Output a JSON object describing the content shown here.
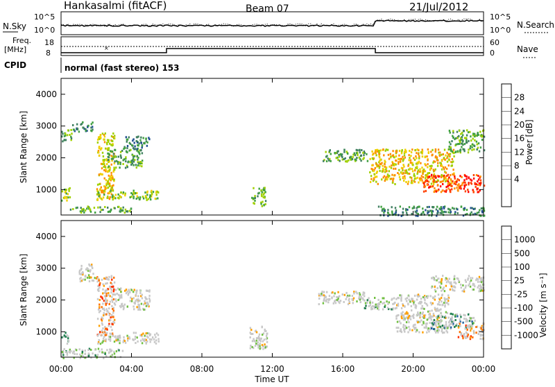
{
  "header": {
    "station": "Hankasalmi (fitACF)",
    "beam": "Beam 07",
    "date": "21/Jul/2012"
  },
  "noise_panel": {
    "left_label": "N.Sky",
    "right_label": "N.Search",
    "left_ticks": [
      "10^5",
      "10^0"
    ],
    "right_ticks": [
      "10^5",
      "10^0"
    ]
  },
  "freq_panel": {
    "left_label_line1": "Freq.",
    "left_label_line2": "[MHz]",
    "left_ticks": [
      "18",
      "8"
    ],
    "right_label": "Nave",
    "right_ticks": [
      "60",
      "0"
    ]
  },
  "cpid": {
    "label": "CPID",
    "mode_text": "normal (fast stereo) 153"
  },
  "colors": {
    "frame": "#000000",
    "background": "#ffffff",
    "ground_scatter": "#c8c8c8"
  },
  "chart_data": [
    {
      "type": "heatmap",
      "name": "power",
      "ylabel": "Slant Range [km]",
      "yticks": [
        "1000",
        "2000",
        "3000",
        "4000"
      ],
      "y_values": [
        1000,
        2000,
        3000,
        4000
      ],
      "ylim": [
        200,
        4500
      ],
      "colorbar_label": "Power [dB]",
      "colorbar_ticks": [
        "28",
        "24",
        "20",
        "16",
        "12",
        "8",
        "4"
      ],
      "colorbar_colors": [
        "#ff0000",
        "#ff4000",
        "#ff8c00",
        "#f0d000",
        "#a0d000",
        "#40a040",
        "#408060",
        "#205090",
        "#0000ff"
      ],
      "scatter_regions": [
        {
          "t0": 0.0,
          "t1": 0.5,
          "r0": 650,
          "r1": 1100,
          "level": 4
        },
        {
          "t0": 0.0,
          "t1": 0.6,
          "r0": 2550,
          "r1": 2950,
          "level": 3
        },
        {
          "t0": 0.6,
          "t1": 1.8,
          "r0": 2850,
          "r1": 3150,
          "level": 2
        },
        {
          "t0": 2.0,
          "t1": 3.0,
          "r0": 700,
          "r1": 2800,
          "level": 5
        },
        {
          "t0": 2.6,
          "t1": 4.6,
          "r0": 1700,
          "r1": 2300,
          "level": 3
        },
        {
          "t0": 3.5,
          "t1": 5.0,
          "r0": 2300,
          "r1": 2700,
          "level": 2
        },
        {
          "t0": 2.0,
          "t1": 5.5,
          "r0": 700,
          "r1": 1000,
          "level": 4
        },
        {
          "t0": 0.5,
          "t1": 4.0,
          "r0": 300,
          "r1": 500,
          "level": 3
        },
        {
          "t0": 10.8,
          "t1": 11.6,
          "r0": 500,
          "r1": 1100,
          "level": 3
        },
        {
          "t0": 14.8,
          "t1": 17.4,
          "r0": 1900,
          "r1": 2300,
          "level": 3
        },
        {
          "t0": 17.5,
          "t1": 22.3,
          "r0": 1200,
          "r1": 2300,
          "level": 5
        },
        {
          "t0": 20.5,
          "t1": 24.0,
          "r0": 950,
          "r1": 1500,
          "level": 7
        },
        {
          "t0": 22.0,
          "t1": 24.0,
          "r0": 2200,
          "r1": 2900,
          "level": 3
        },
        {
          "t0": 18.0,
          "t1": 24.0,
          "r0": 200,
          "r1": 500,
          "level": 2
        }
      ]
    },
    {
      "type": "heatmap",
      "name": "velocity",
      "ylabel": "Slant Range [km]",
      "yticks": [
        "1000",
        "2000",
        "3000",
        "4000"
      ],
      "y_values": [
        1000,
        2000,
        3000,
        4000
      ],
      "ylim": [
        200,
        4500
      ],
      "colorbar_label": "Velocity [m s⁻¹]",
      "colorbar_ticks": [
        "1000",
        "500",
        "100",
        "25",
        "-25",
        "-100",
        "-500",
        "-1000"
      ],
      "colorbar_colors": [
        "#1030c0",
        "#2060a0",
        "#208050",
        "#70c040",
        "#c8c8c8",
        "#ffa000",
        "#ff7000",
        "#ff3000",
        "#ff0000"
      ],
      "scatter_regions": [
        {
          "t0": 0.0,
          "t1": 0.4,
          "r0": 650,
          "r1": 1050,
          "level": 2
        },
        {
          "t0": 1.0,
          "t1": 2.0,
          "r0": 2600,
          "r1": 3150,
          "level": 4
        },
        {
          "t0": 2.0,
          "t1": 3.0,
          "r0": 900,
          "r1": 2800,
          "level": 6
        },
        {
          "t0": 3.0,
          "t1": 5.0,
          "r0": 1700,
          "r1": 2400,
          "level": 4
        },
        {
          "t0": 2.0,
          "t1": 5.5,
          "r0": 650,
          "r1": 1000,
          "level": 4
        },
        {
          "t0": 0.0,
          "t1": 3.5,
          "r0": 200,
          "r1": 500,
          "level": 3
        },
        {
          "t0": 10.7,
          "t1": 11.7,
          "r0": 450,
          "r1": 1200,
          "level": 4
        },
        {
          "t0": 14.5,
          "t1": 17.2,
          "r0": 1900,
          "r1": 2300,
          "level": 4
        },
        {
          "t0": 17.2,
          "t1": 19.0,
          "r0": 1700,
          "r1": 2100,
          "level": 3
        },
        {
          "t0": 19.0,
          "t1": 22.0,
          "r0": 1000,
          "r1": 2200,
          "level": 4
        },
        {
          "t0": 21.0,
          "t1": 23.5,
          "r0": 1100,
          "r1": 1600,
          "level": 2
        },
        {
          "t0": 22.5,
          "t1": 24.0,
          "r0": 800,
          "r1": 1300,
          "level": 6
        },
        {
          "t0": 21.0,
          "t1": 24.0,
          "r0": 2300,
          "r1": 2800,
          "level": 4
        }
      ]
    }
  ],
  "xaxis": {
    "label": "Time UT",
    "ticks": [
      "00:00",
      "04:00",
      "08:00",
      "12:00",
      "16:00",
      "20:00",
      "00:00"
    ],
    "values": [
      0,
      4,
      8,
      12,
      16,
      20,
      24
    ],
    "xlim": [
      0,
      24
    ]
  }
}
